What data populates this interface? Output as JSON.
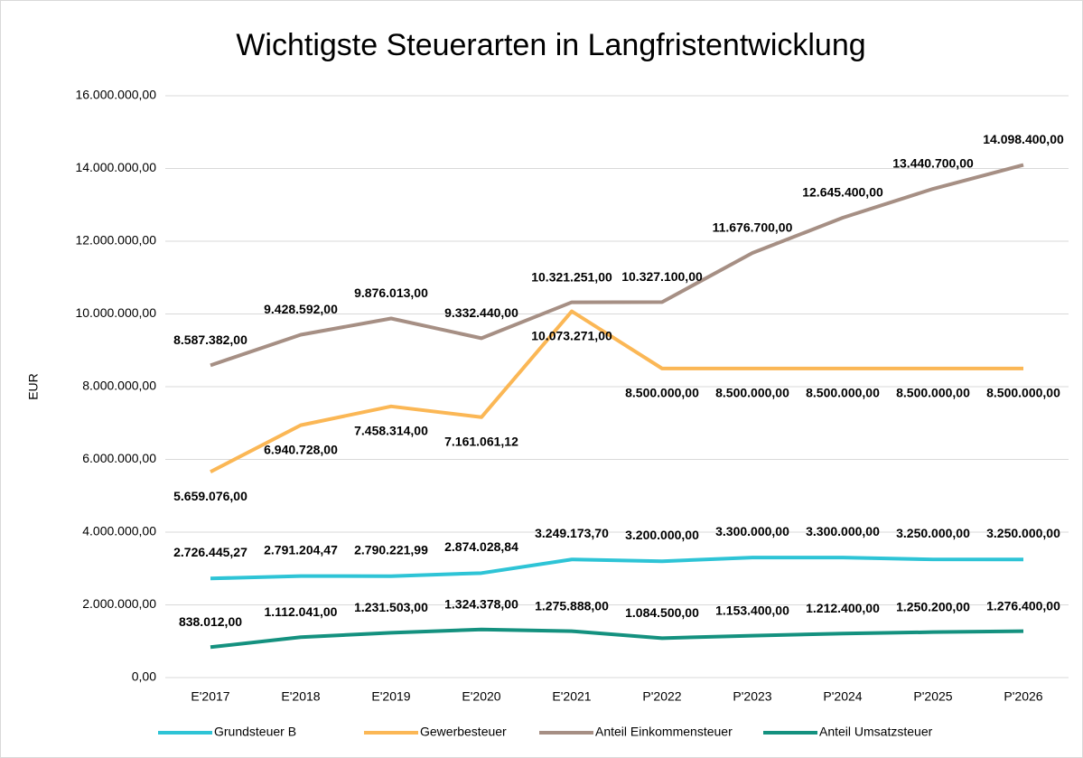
{
  "chart_data": {
    "type": "line",
    "title": "Wichtigste Steuerarten in Langfristentwicklung",
    "y_label": "EUR",
    "categories": [
      "E'2017",
      "E'2018",
      "E'2019",
      "E'2020",
      "E'2021",
      "P'2022",
      "P'2023",
      "P'2024",
      "P'2025",
      "P'2026"
    ],
    "ylim": [
      0,
      16000000
    ],
    "yticks": [
      {
        "value": 0,
        "label": "0,00"
      },
      {
        "value": 2000000,
        "label": "2.000.000,00"
      },
      {
        "value": 4000000,
        "label": "4.000.000,00"
      },
      {
        "value": 6000000,
        "label": "6.000.000,00"
      },
      {
        "value": 8000000,
        "label": "8.000.000,00"
      },
      {
        "value": 10000000,
        "label": "10.000.000,00"
      },
      {
        "value": 12000000,
        "label": "12.000.000,00"
      },
      {
        "value": 14000000,
        "label": "14.000.000,00"
      },
      {
        "value": 16000000,
        "label": "16.000.000,00"
      }
    ],
    "grid": true,
    "legend": "bottom",
    "series": [
      {
        "name": "Grundsteuer B",
        "color": "#2ec4d6",
        "values": [
          2726445.27,
          2791204.47,
          2790221.99,
          2874028.84,
          3249173.7,
          3200000,
          3300000,
          3300000,
          3250000,
          3250000
        ],
        "value_labels": [
          "2.726.445,27",
          "2.791.204,47",
          "2.790.221,99",
          "2.874.028,84",
          "3.249.173,70",
          "3.200.000,00",
          "3.300.000,00",
          "3.300.000,00",
          "3.250.000,00",
          "3.250.000,00"
        ]
      },
      {
        "name": "Gewerbesteuer",
        "color": "#fbb755",
        "values": [
          5659076,
          6940728,
          7458314,
          7161061.12,
          10073271,
          8500000,
          8500000,
          8500000,
          8500000,
          8500000
        ],
        "value_labels": [
          "5.659.076,00",
          "6.940.728,00",
          "7.458.314,00",
          "7.161.061,12",
          "10.073.271,00",
          "8.500.000,00",
          "8.500.000,00",
          "8.500.000,00",
          "8.500.000,00",
          "8.500.000,00"
        ]
      },
      {
        "name": "Anteil Einkommensteuer",
        "color": "#a68f84",
        "values": [
          8587382,
          9428592,
          9876013,
          9332440,
          10321251,
          10327100,
          11676700,
          12645400,
          13440700,
          14098400
        ],
        "value_labels": [
          "8.587.382,00",
          "9.428.592,00",
          "9.876.013,00",
          "9.332.440,00",
          "10.321.251,00",
          "10.327.100,00",
          "11.676.700,00",
          "12.645.400,00",
          "13.440.700,00",
          "14.098.400,00"
        ]
      },
      {
        "name": "Anteil Umsatzsteuer",
        "color": "#14917f",
        "values": [
          838012,
          1112041,
          1231503,
          1324378,
          1275888,
          1084500,
          1153400,
          1212400,
          1250200,
          1276400
        ],
        "value_labels": [
          "838.012,00",
          "1.112.041,00",
          "1.231.503,00",
          "1.324.378,00",
          "1.275.888,00",
          "1.084.500,00",
          "1.153.400,00",
          "1.212.400,00",
          "1.250.200,00",
          "1.276.400,00"
        ]
      }
    ]
  }
}
